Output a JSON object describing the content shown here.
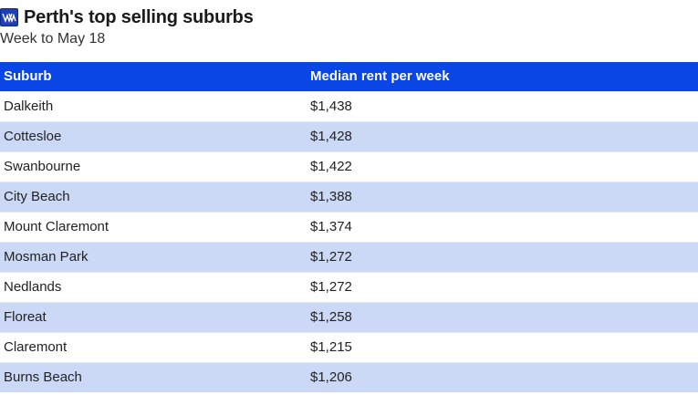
{
  "header": {
    "logo_icon": "publisher-logo-icon",
    "title": "Perth's top selling suburbs",
    "subtitle": "Week to May 18"
  },
  "colors": {
    "header_bg": "#0a46e6",
    "alt_row_bg": "#ccd9f6",
    "logo_bg": "#1f3fb4"
  },
  "chart_data": {
    "type": "table",
    "title": "Perth's top selling suburbs",
    "subtitle": "Week to May 18",
    "columns": [
      "Suburb",
      "Median rent per week"
    ],
    "rows": [
      [
        "Dalkeith",
        "$1,438"
      ],
      [
        "Cottesloe",
        "$1,428"
      ],
      [
        "Swanbourne",
        "$1,422"
      ],
      [
        "City Beach",
        "$1,388"
      ],
      [
        "Mount Claremont",
        "$1,374"
      ],
      [
        "Mosman Park",
        "$1,272"
      ],
      [
        "Nedlands",
        "$1,272"
      ],
      [
        "Floreat",
        "$1,258"
      ],
      [
        "Claremont",
        "$1,215"
      ],
      [
        "Burns Beach",
        "$1,206"
      ]
    ]
  }
}
